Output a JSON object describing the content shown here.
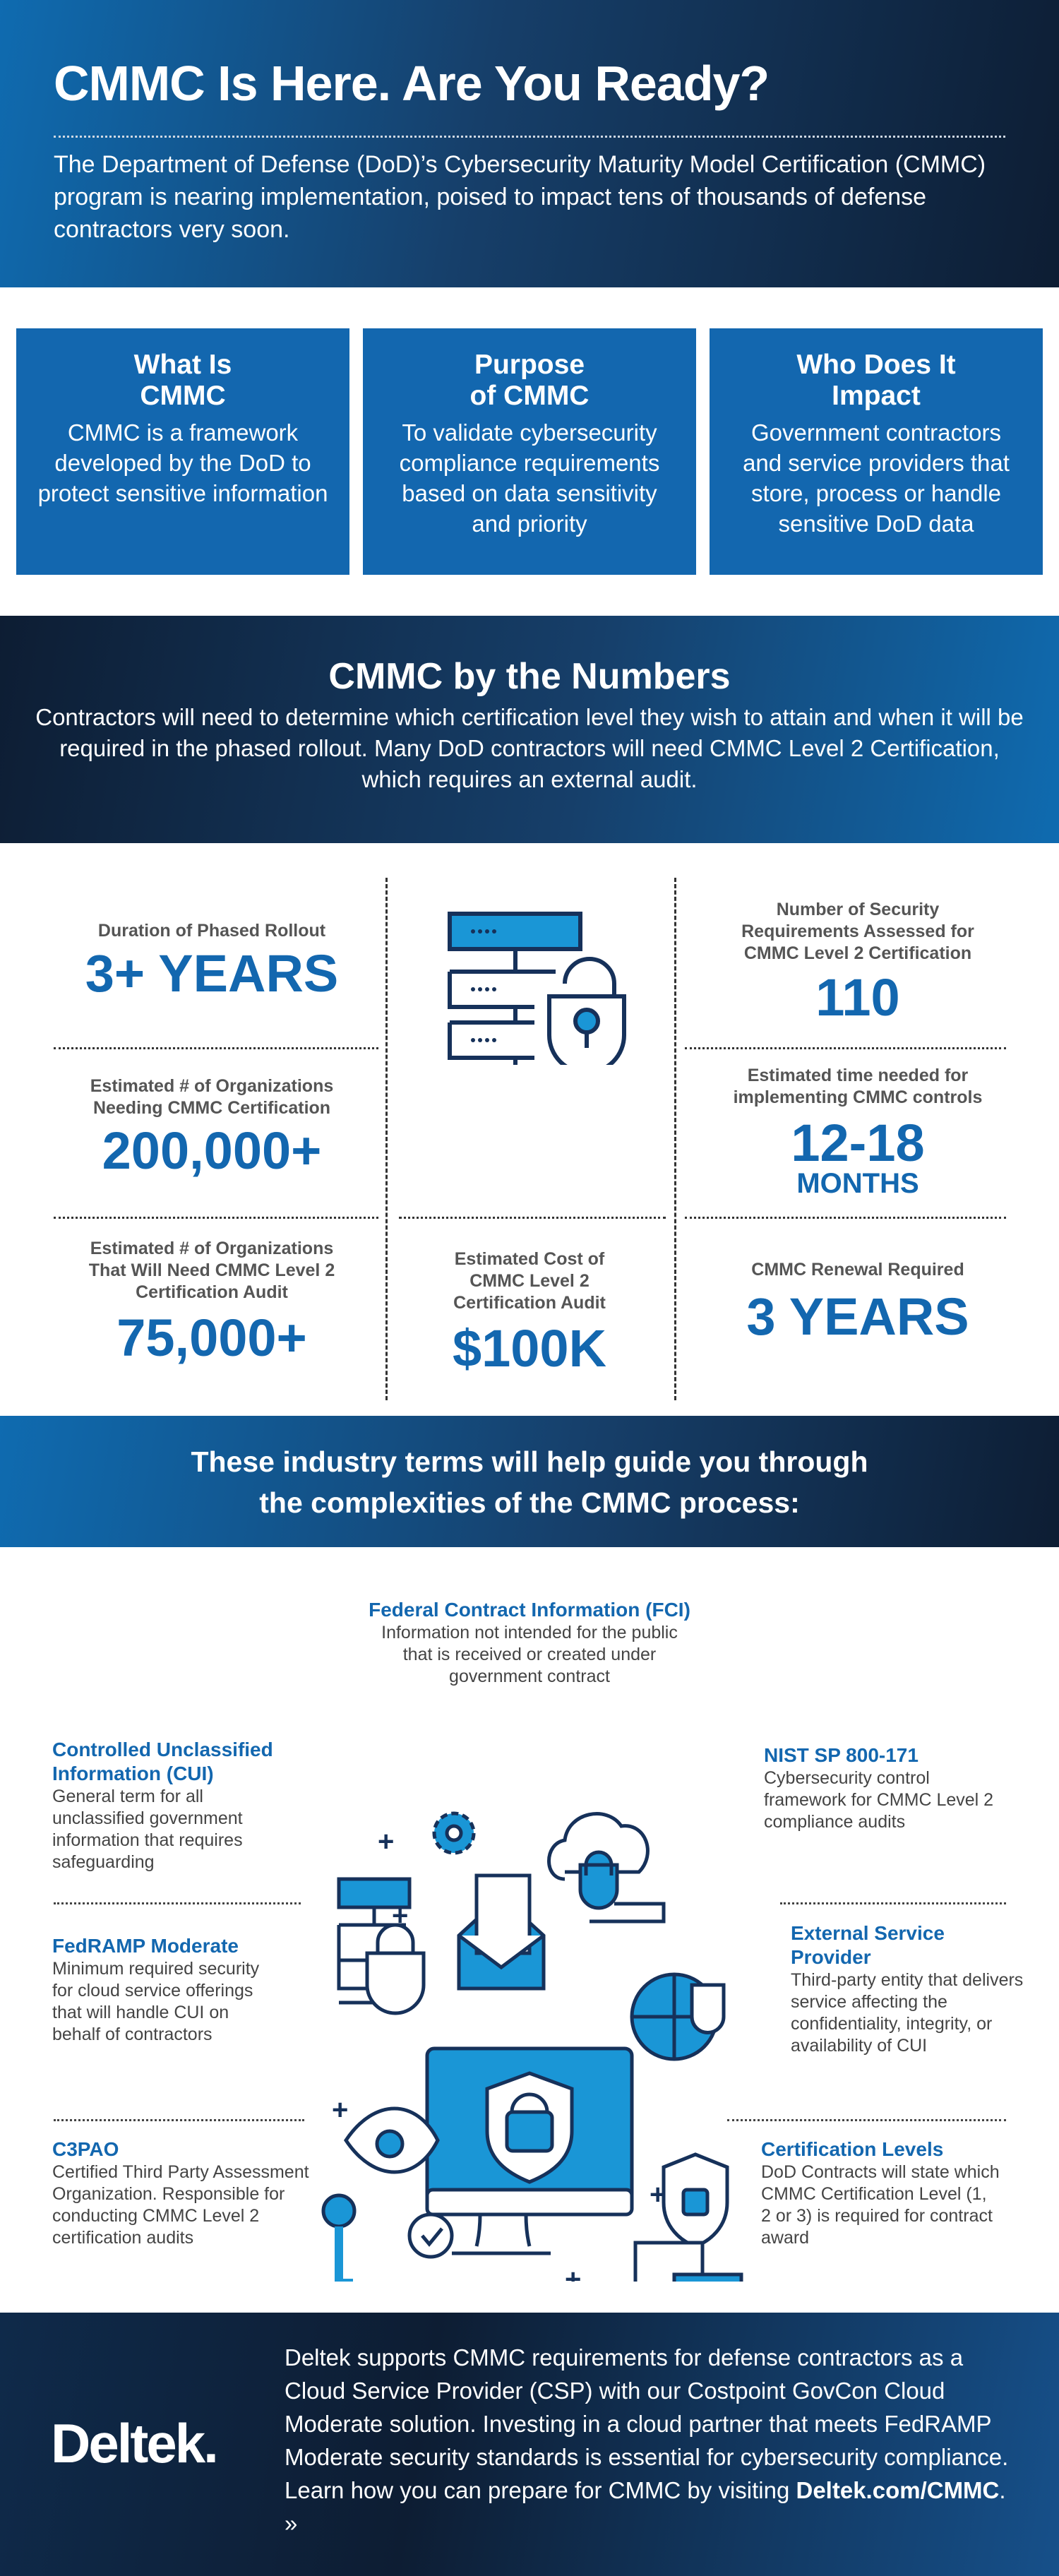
{
  "hero": {
    "title": "CMMC Is Here. Are You Ready?",
    "intro": "The Department of Defense (DoD)’s Cybersecurity Maturity Model Certification (CMMC) program is nearing implementation, poised to impact tens of thousands of defense contractors very soon."
  },
  "cards": [
    {
      "title": "What Is CMMC",
      "text": "CMMC is a framework developed by the DoD to protect sensitive information"
    },
    {
      "title": "Purpose of CMMC",
      "text": "To validate cybersecurity compliance requirements based on data sensitivity and priority"
    },
    {
      "title": "Who Does It Impact",
      "text": "Government contractors and service providers that store, process or handle sensitive DoD data"
    }
  ],
  "numbers": {
    "title": "CMMC by the Numbers",
    "intro": "Contractors will need to determine which certification level they wish to attain and when it will be required in the phased rollout. Many DoD contractors will need CMMC Level 2 Certification, which requires an external audit."
  },
  "stats": [
    {
      "label": "Duration of Phased Rollout",
      "value": "3+ YEARS"
    },
    {
      "label": "Estimated # of Organizations Needing CMMC Certification",
      "value": "200,000+"
    },
    {
      "label": "Estimated # of Organizations That Will Need CMMC Level 2 Certification Audit",
      "value": "75,000+"
    },
    {
      "label": "Estimated Cost of CMMC Level 2 Certification Audit",
      "value": "$100K"
    },
    {
      "label": "Number of Security Requirements Assessed for CMMC Level 2 Certification",
      "value": "110"
    },
    {
      "label": "Estimated time needed for implementing CMMC controls",
      "value": "12-18",
      "unit": "MONTHS"
    },
    {
      "label": "CMMC Renewal Required",
      "value": "3 YEARS"
    }
  ],
  "terms_intro": "These industry terms will help guide you through the complexities of the CMMC process:",
  "terms": [
    {
      "title": "Federal Contract Information (FCI)",
      "text": "Information not intended for the public that is received or created under government contract"
    },
    {
      "title": "Controlled Unclassified Information (CUI)",
      "text": "General term for all unclassified government information that requires safeguarding"
    },
    {
      "title": "NIST SP 800-171",
      "text": "Cybersecurity control framework for CMMC Level 2  compliance audits"
    },
    {
      "title": "FedRAMP Moderate",
      "text": "Minimum required security for cloud service offerings that will handle CUI on behalf of contractors"
    },
    {
      "title": "External Service Provider",
      "text": "Third-party entity that delivers service affecting the confidentiality, integrity, or availability of CUI"
    },
    {
      "title": "C3PAO",
      "text": "Certified Third Party Assessment Organization. Responsible for conducting CMMC Level 2 certification audits"
    },
    {
      "title": "Certification Levels",
      "text": "DoD Contracts will state which CMMC Certification Level (1, 2 or 3) is required for contract award"
    }
  ],
  "footer": {
    "logo": "Deltek.",
    "text": "Deltek supports CMMC requirements for defense contractors as a Cloud Service Provider (CSP) with our Costpoint GovCon Cloud Moderate solution. Investing in a cloud partner that meets FedRAMP Moderate security standards is essential for cybersecurity compliance. Learn how you can prepare for CMMC by visiting ",
    "link": "Deltek.com/CMMC",
    "suffix": ". »"
  },
  "colors": {
    "accent": "#1367af",
    "light_blue": "#1a96d6",
    "navy": "#16315a"
  }
}
